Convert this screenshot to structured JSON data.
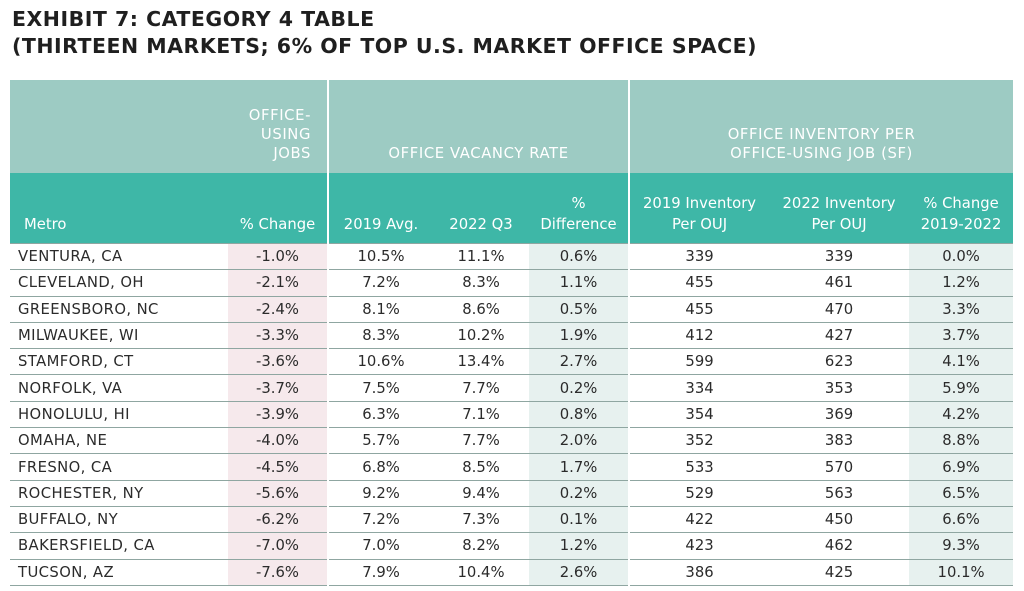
{
  "title": {
    "line1": "EXHIBIT 7: CATEGORY 4 TABLE",
    "line2": "(THIRTEEN MARKETS; 6% OF TOP U.S. MARKET OFFICE SPACE)"
  },
  "header": {
    "group_jobs": [
      "OFFICE-",
      "USING",
      "JOBS"
    ],
    "group_vacancy": "OFFICE VACANCY RATE",
    "group_inventory": [
      "OFFICE INVENTORY PER",
      "OFFICE-USING JOB (SF)"
    ],
    "col_metro": "Metro",
    "col_jobs_change": "% Change",
    "col_2019_avg": "2019 Avg.",
    "col_2022_q3": "2022 Q3",
    "col_pct_diff": [
      "%",
      "Difference"
    ],
    "col_2019_inv": [
      "2019 Inventory",
      "Per OUJ"
    ],
    "col_2022_inv": [
      "2022 Inventory",
      "Per OUJ"
    ],
    "col_inv_change": [
      "% Change",
      "2019-2022"
    ]
  },
  "rows": [
    {
      "metro": "VENTURA, CA",
      "jobs_change": "-1.0%",
      "vac_2019": "10.5%",
      "vac_2022": "11.1%",
      "vac_diff": "0.6%",
      "inv_2019": "339",
      "inv_2022": "339",
      "inv_change": "0.0%"
    },
    {
      "metro": "CLEVELAND, OH",
      "jobs_change": "-2.1%",
      "vac_2019": "7.2%",
      "vac_2022": "8.3%",
      "vac_diff": "1.1%",
      "inv_2019": "455",
      "inv_2022": "461",
      "inv_change": "1.2%"
    },
    {
      "metro": "GREENSBORO, NC",
      "jobs_change": "-2.4%",
      "vac_2019": "8.1%",
      "vac_2022": "8.6%",
      "vac_diff": "0.5%",
      "inv_2019": "455",
      "inv_2022": "470",
      "inv_change": "3.3%"
    },
    {
      "metro": "MILWAUKEE, WI",
      "jobs_change": "-3.3%",
      "vac_2019": "8.3%",
      "vac_2022": "10.2%",
      "vac_diff": "1.9%",
      "inv_2019": "412",
      "inv_2022": "427",
      "inv_change": "3.7%"
    },
    {
      "metro": "STAMFORD, CT",
      "jobs_change": "-3.6%",
      "vac_2019": "10.6%",
      "vac_2022": "13.4%",
      "vac_diff": "2.7%",
      "inv_2019": "599",
      "inv_2022": "623",
      "inv_change": "4.1%"
    },
    {
      "metro": "NORFOLK, VA",
      "jobs_change": "-3.7%",
      "vac_2019": "7.5%",
      "vac_2022": "7.7%",
      "vac_diff": "0.2%",
      "inv_2019": "334",
      "inv_2022": "353",
      "inv_change": "5.9%"
    },
    {
      "metro": "HONOLULU, HI",
      "jobs_change": "-3.9%",
      "vac_2019": "6.3%",
      "vac_2022": "7.1%",
      "vac_diff": "0.8%",
      "inv_2019": "354",
      "inv_2022": "369",
      "inv_change": "4.2%"
    },
    {
      "metro": "OMAHA, NE",
      "jobs_change": "-4.0%",
      "vac_2019": "5.7%",
      "vac_2022": "7.7%",
      "vac_diff": "2.0%",
      "inv_2019": "352",
      "inv_2022": "383",
      "inv_change": "8.8%"
    },
    {
      "metro": "FRESNO, CA",
      "jobs_change": "-4.5%",
      "vac_2019": "6.8%",
      "vac_2022": "8.5%",
      "vac_diff": "1.7%",
      "inv_2019": "533",
      "inv_2022": "570",
      "inv_change": "6.9%"
    },
    {
      "metro": "ROCHESTER, NY",
      "jobs_change": "-5.6%",
      "vac_2019": "9.2%",
      "vac_2022": "9.4%",
      "vac_diff": "0.2%",
      "inv_2019": "529",
      "inv_2022": "563",
      "inv_change": "6.5%"
    },
    {
      "metro": "BUFFALO, NY",
      "jobs_change": "-6.2%",
      "vac_2019": "7.2%",
      "vac_2022": "7.3%",
      "vac_diff": "0.1%",
      "inv_2019": "422",
      "inv_2022": "450",
      "inv_change": "6.6%"
    },
    {
      "metro": "BAKERSFIELD, CA",
      "jobs_change": "-7.0%",
      "vac_2019": "7.0%",
      "vac_2022": "8.2%",
      "vac_diff": "1.2%",
      "inv_2019": "423",
      "inv_2022": "462",
      "inv_change": "9.3%"
    },
    {
      "metro": "TUCSON, AZ",
      "jobs_change": "-7.6%",
      "vac_2019": "7.9%",
      "vac_2022": "10.4%",
      "vac_diff": "2.6%",
      "inv_2019": "386",
      "inv_2022": "425",
      "inv_change": "10.1%"
    }
  ]
}
